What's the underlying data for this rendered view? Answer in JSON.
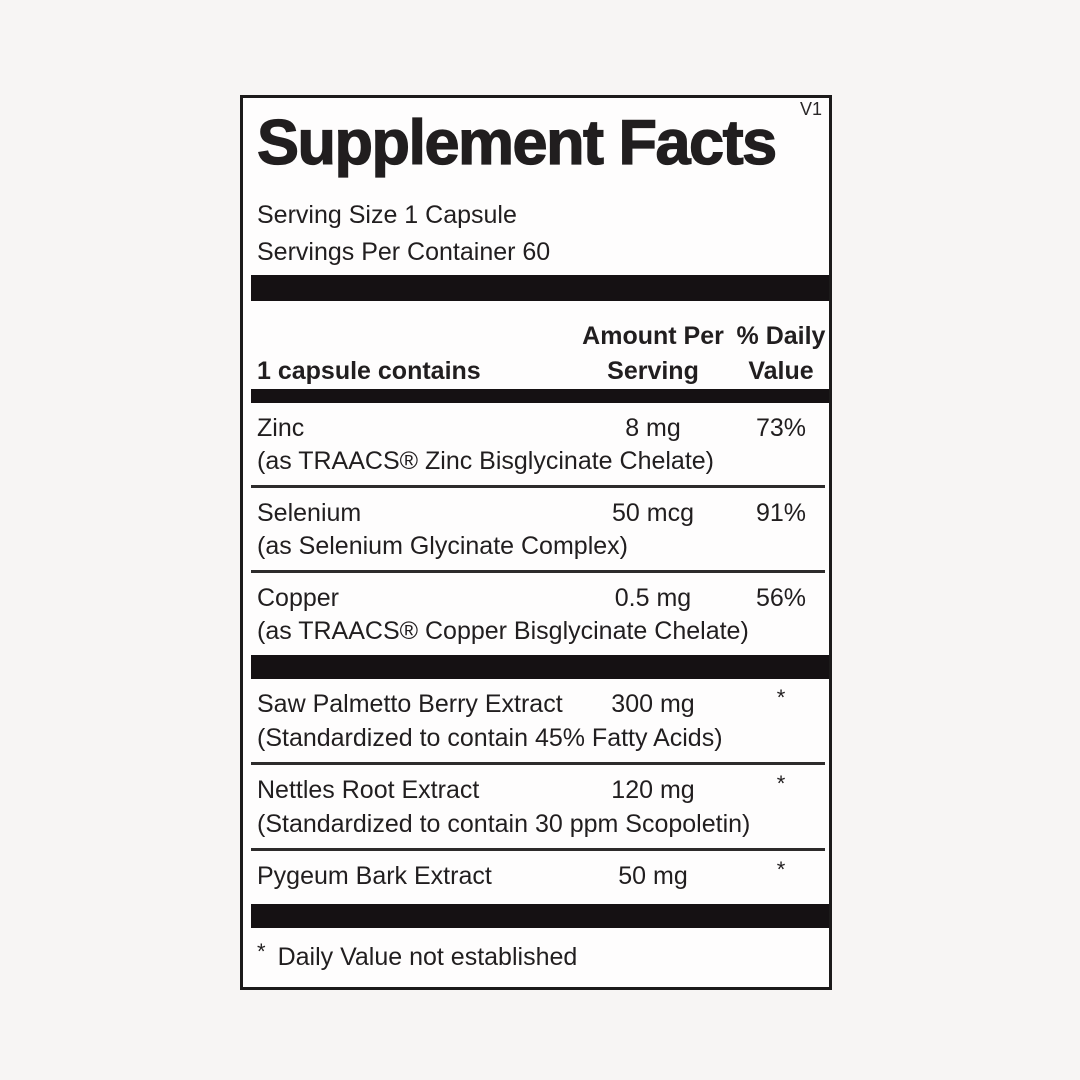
{
  "version": "V1",
  "title": "Supplement Facts",
  "serving": {
    "size": "Serving Size 1 Capsule",
    "per_container": "Servings Per Container 60"
  },
  "table": {
    "header": {
      "contains": "1 capsule contains",
      "amount_line1": "Amount Per",
      "amount_line2": "Serving",
      "dv_line1": "% Daily",
      "dv_line2": "Value"
    },
    "rows": [
      {
        "name": "Zinc",
        "detail": "(as TRAACS® Zinc Bisglycinate Chelate)",
        "amount": "8 mg",
        "dv": "73%"
      },
      {
        "name": "Selenium",
        "detail": "(as Selenium Glycinate Complex)",
        "amount": "50 mcg",
        "dv": "91%"
      },
      {
        "name": "Copper",
        "detail": "(as TRAACS® Copper Bisglycinate Chelate)",
        "amount": "0.5 mg",
        "dv": "56%"
      },
      {
        "name": "Saw Palmetto Berry Extract",
        "detail": "(Standardized to contain 45% Fatty Acids)",
        "amount": "300 mg",
        "dv": "*"
      },
      {
        "name": "Nettles Root Extract",
        "detail": "(Standardized to contain 30 ppm Scopoletin)",
        "amount": "120 mg",
        "dv": "*"
      },
      {
        "name": "Pygeum Bark Extract",
        "amount": "50 mg",
        "dv": "*"
      }
    ]
  },
  "footnote": {
    "symbol": "*",
    "text": "Daily Value not established"
  },
  "colors": {
    "page_background": "#f7f5f4",
    "panel_background": "#fefdfd",
    "border": "#1c1a1a",
    "bar": "#151113",
    "text": "#211e1f"
  }
}
